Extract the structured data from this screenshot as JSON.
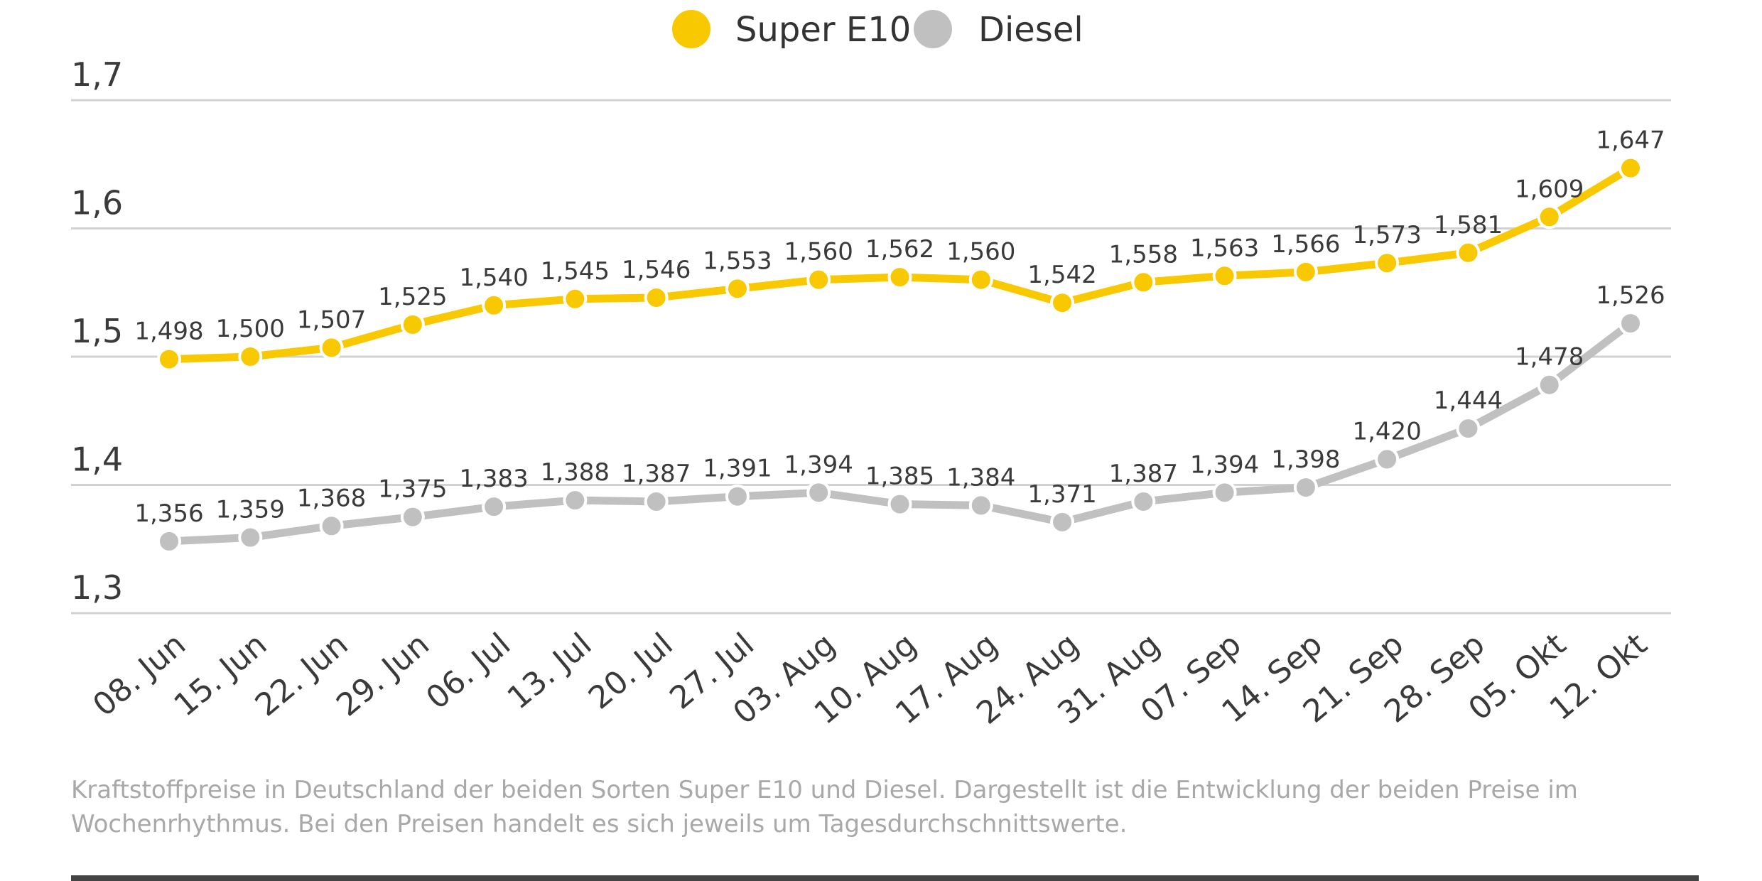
{
  "chart_data": {
    "type": "line",
    "title": "",
    "xlabel": "",
    "ylabel": "",
    "ylim": [
      1.3,
      1.7
    ],
    "yticks": [
      1.3,
      1.4,
      1.5,
      1.6,
      1.7
    ],
    "ytick_labels": [
      "1,3",
      "1,4",
      "1,5",
      "1,6",
      "1,7"
    ],
    "grid": true,
    "legend_position": "top-center",
    "categories": [
      "08. Jun",
      "15. Jun",
      "22. Jun",
      "29. Jun",
      "06. Jul",
      "13. Jul",
      "20. Jul",
      "27. Jul",
      "03. Aug",
      "10. Aug",
      "17. Aug",
      "24. Aug",
      "31. Aug",
      "07. Sep",
      "14. Sep",
      "21. Sep",
      "28. Sep",
      "05. Okt",
      "12. Okt"
    ],
    "series": [
      {
        "name": "Super E10",
        "color": "#f8c800",
        "values": [
          1.498,
          1.5,
          1.507,
          1.525,
          1.54,
          1.545,
          1.546,
          1.553,
          1.56,
          1.562,
          1.56,
          1.542,
          1.558,
          1.563,
          1.566,
          1.573,
          1.581,
          1.609,
          1.647
        ],
        "labels": [
          "1,498",
          "1,500",
          "1,507",
          "1,525",
          "1,540",
          "1,545",
          "1,546",
          "1,553",
          "1,560",
          "1,562",
          "1,560",
          "1,542",
          "1,558",
          "1,563",
          "1,566",
          "1,573",
          "1,581",
          "1,609",
          "1,647"
        ]
      },
      {
        "name": "Diesel",
        "color": "#c0c0c0",
        "values": [
          1.356,
          1.359,
          1.368,
          1.375,
          1.383,
          1.388,
          1.387,
          1.391,
          1.394,
          1.385,
          1.384,
          1.371,
          1.387,
          1.394,
          1.398,
          1.42,
          1.444,
          1.478,
          1.526
        ],
        "labels": [
          "1,356",
          "1,359",
          "1,368",
          "1,375",
          "1,383",
          "1,388",
          "1,387",
          "1,391",
          "1,394",
          "1,385",
          "1,384",
          "1,371",
          "1,387",
          "1,394",
          "1,398",
          "1,420",
          "1,444",
          "1,478",
          "1,526"
        ]
      }
    ]
  },
  "caption": {
    "line1": "Kraftstoffpreise in Deutschland der beiden Sorten Super E10 und Diesel. Dargestellt ist die Entwicklung der beiden Preise im",
    "line2": "Wochenrhythmus. Bei den Preisen handelt es sich jeweils um Tagesdurchschnittswerte."
  }
}
